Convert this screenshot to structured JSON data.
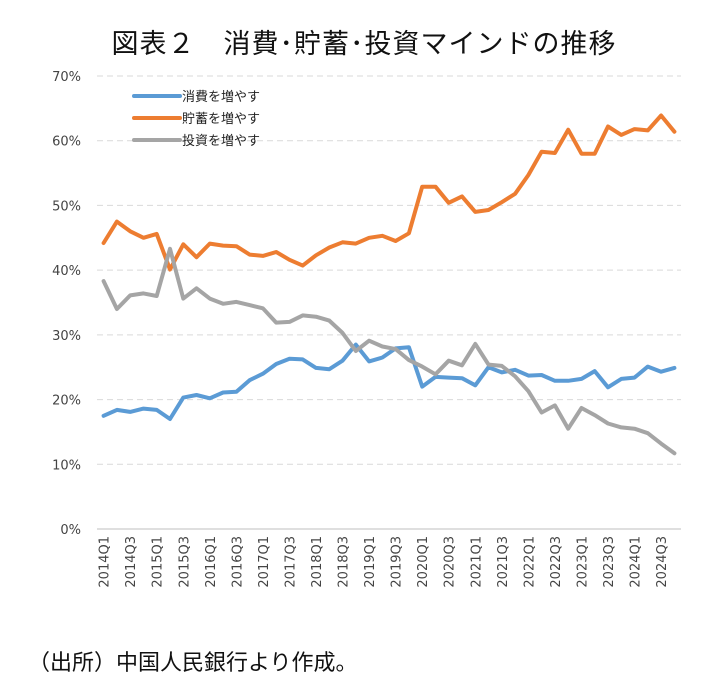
{
  "title": "図表２　消費･貯蓄･投資マインドの推移",
  "source_note": "（出所）中国人民銀行より作成。",
  "chart_data": {
    "type": "line",
    "title": "図表２　消費･貯蓄･投資マインドの推移",
    "xlabel": "",
    "ylabel": "",
    "ylim": [
      0,
      70
    ],
    "y_ticks": [
      "0%",
      "10%",
      "20%",
      "30%",
      "40%",
      "50%",
      "60%",
      "70%"
    ],
    "y_tick_values": [
      0,
      10,
      20,
      30,
      40,
      50,
      60,
      70
    ],
    "grid": true,
    "legend_position": "top-left",
    "categories": [
      "2014Q1",
      "2014Q2",
      "2014Q3",
      "2014Q4",
      "2015Q1",
      "2015Q2",
      "2015Q3",
      "2015Q4",
      "2016Q1",
      "2016Q2",
      "2016Q3",
      "2016Q4",
      "2017Q1",
      "2017Q2",
      "2017Q3",
      "2017Q4",
      "2018Q1",
      "2018Q2",
      "2018Q3",
      "2018Q4",
      "2019Q1",
      "2019Q2",
      "2019Q3",
      "2019Q4",
      "2020Q1",
      "2020Q2",
      "2020Q3",
      "2020Q4",
      "2021Q1",
      "2021Q2",
      "2021Q3",
      "2021Q4",
      "2022Q1",
      "2022Q2",
      "2022Q3",
      "2022Q4",
      "2023Q1",
      "2023Q2",
      "2023Q3",
      "2023Q4",
      "2024Q1",
      "2024Q2",
      "2024Q3",
      "2024Q4"
    ],
    "x_tick_labels": [
      "2014Q1",
      "2014Q3",
      "2015Q1",
      "2015Q3",
      "2016Q1",
      "2016Q3",
      "2017Q1",
      "2017Q3",
      "2018Q1",
      "2018Q3",
      "2019Q1",
      "2019Q3",
      "2020Q1",
      "2020Q3",
      "2021Q1",
      "2021Q3",
      "2022Q1",
      "2022Q3",
      "2023Q1",
      "2023Q3",
      "2024Q1",
      "2024Q3"
    ],
    "series": [
      {
        "name": "消費を増やす",
        "color": "#5B9BD5",
        "values": [
          17.5,
          18.4,
          18.1,
          18.6,
          18.4,
          17.0,
          20.3,
          20.7,
          20.2,
          21.1,
          21.2,
          23.0,
          24.0,
          25.5,
          26.3,
          26.2,
          24.9,
          24.7,
          26.0,
          28.5,
          25.9,
          26.5,
          27.9,
          28.1,
          22.0,
          23.5,
          23.4,
          23.3,
          22.2,
          25.0,
          24.2,
          24.6,
          23.7,
          23.8,
          22.9,
          22.9,
          23.2,
          24.4,
          21.9,
          23.2,
          23.4,
          25.1,
          24.3,
          24.9
        ]
      },
      {
        "name": "貯蓄を増やす",
        "color": "#ED7D31",
        "values": [
          44.2,
          47.5,
          46.0,
          45.0,
          45.6,
          40.1,
          44.0,
          42.0,
          44.1,
          43.8,
          43.7,
          42.4,
          42.2,
          42.8,
          41.6,
          40.7,
          42.3,
          43.5,
          44.3,
          44.1,
          45.0,
          45.3,
          44.5,
          45.7,
          52.9,
          52.9,
          50.4,
          51.4,
          49.0,
          49.3,
          50.5,
          51.8,
          54.7,
          58.3,
          58.1,
          61.7,
          58.0,
          58.0,
          62.2,
          60.9,
          61.8,
          61.6,
          63.9,
          61.4
        ]
      },
      {
        "name": "投資を増やす",
        "color": "#A5A5A5",
        "values": [
          38.3,
          34.0,
          36.1,
          36.4,
          36.0,
          43.3,
          35.6,
          37.2,
          35.6,
          34.8,
          35.1,
          34.6,
          34.1,
          31.9,
          32.0,
          33.0,
          32.8,
          32.2,
          30.3,
          27.5,
          29.1,
          28.2,
          27.8,
          26.1,
          25.1,
          23.9,
          26.0,
          25.3,
          28.6,
          25.4,
          25.2,
          23.6,
          21.3,
          18.0,
          19.1,
          15.5,
          18.7,
          17.6,
          16.3,
          15.7,
          15.5,
          14.8,
          13.2,
          11.7
        ]
      }
    ]
  }
}
